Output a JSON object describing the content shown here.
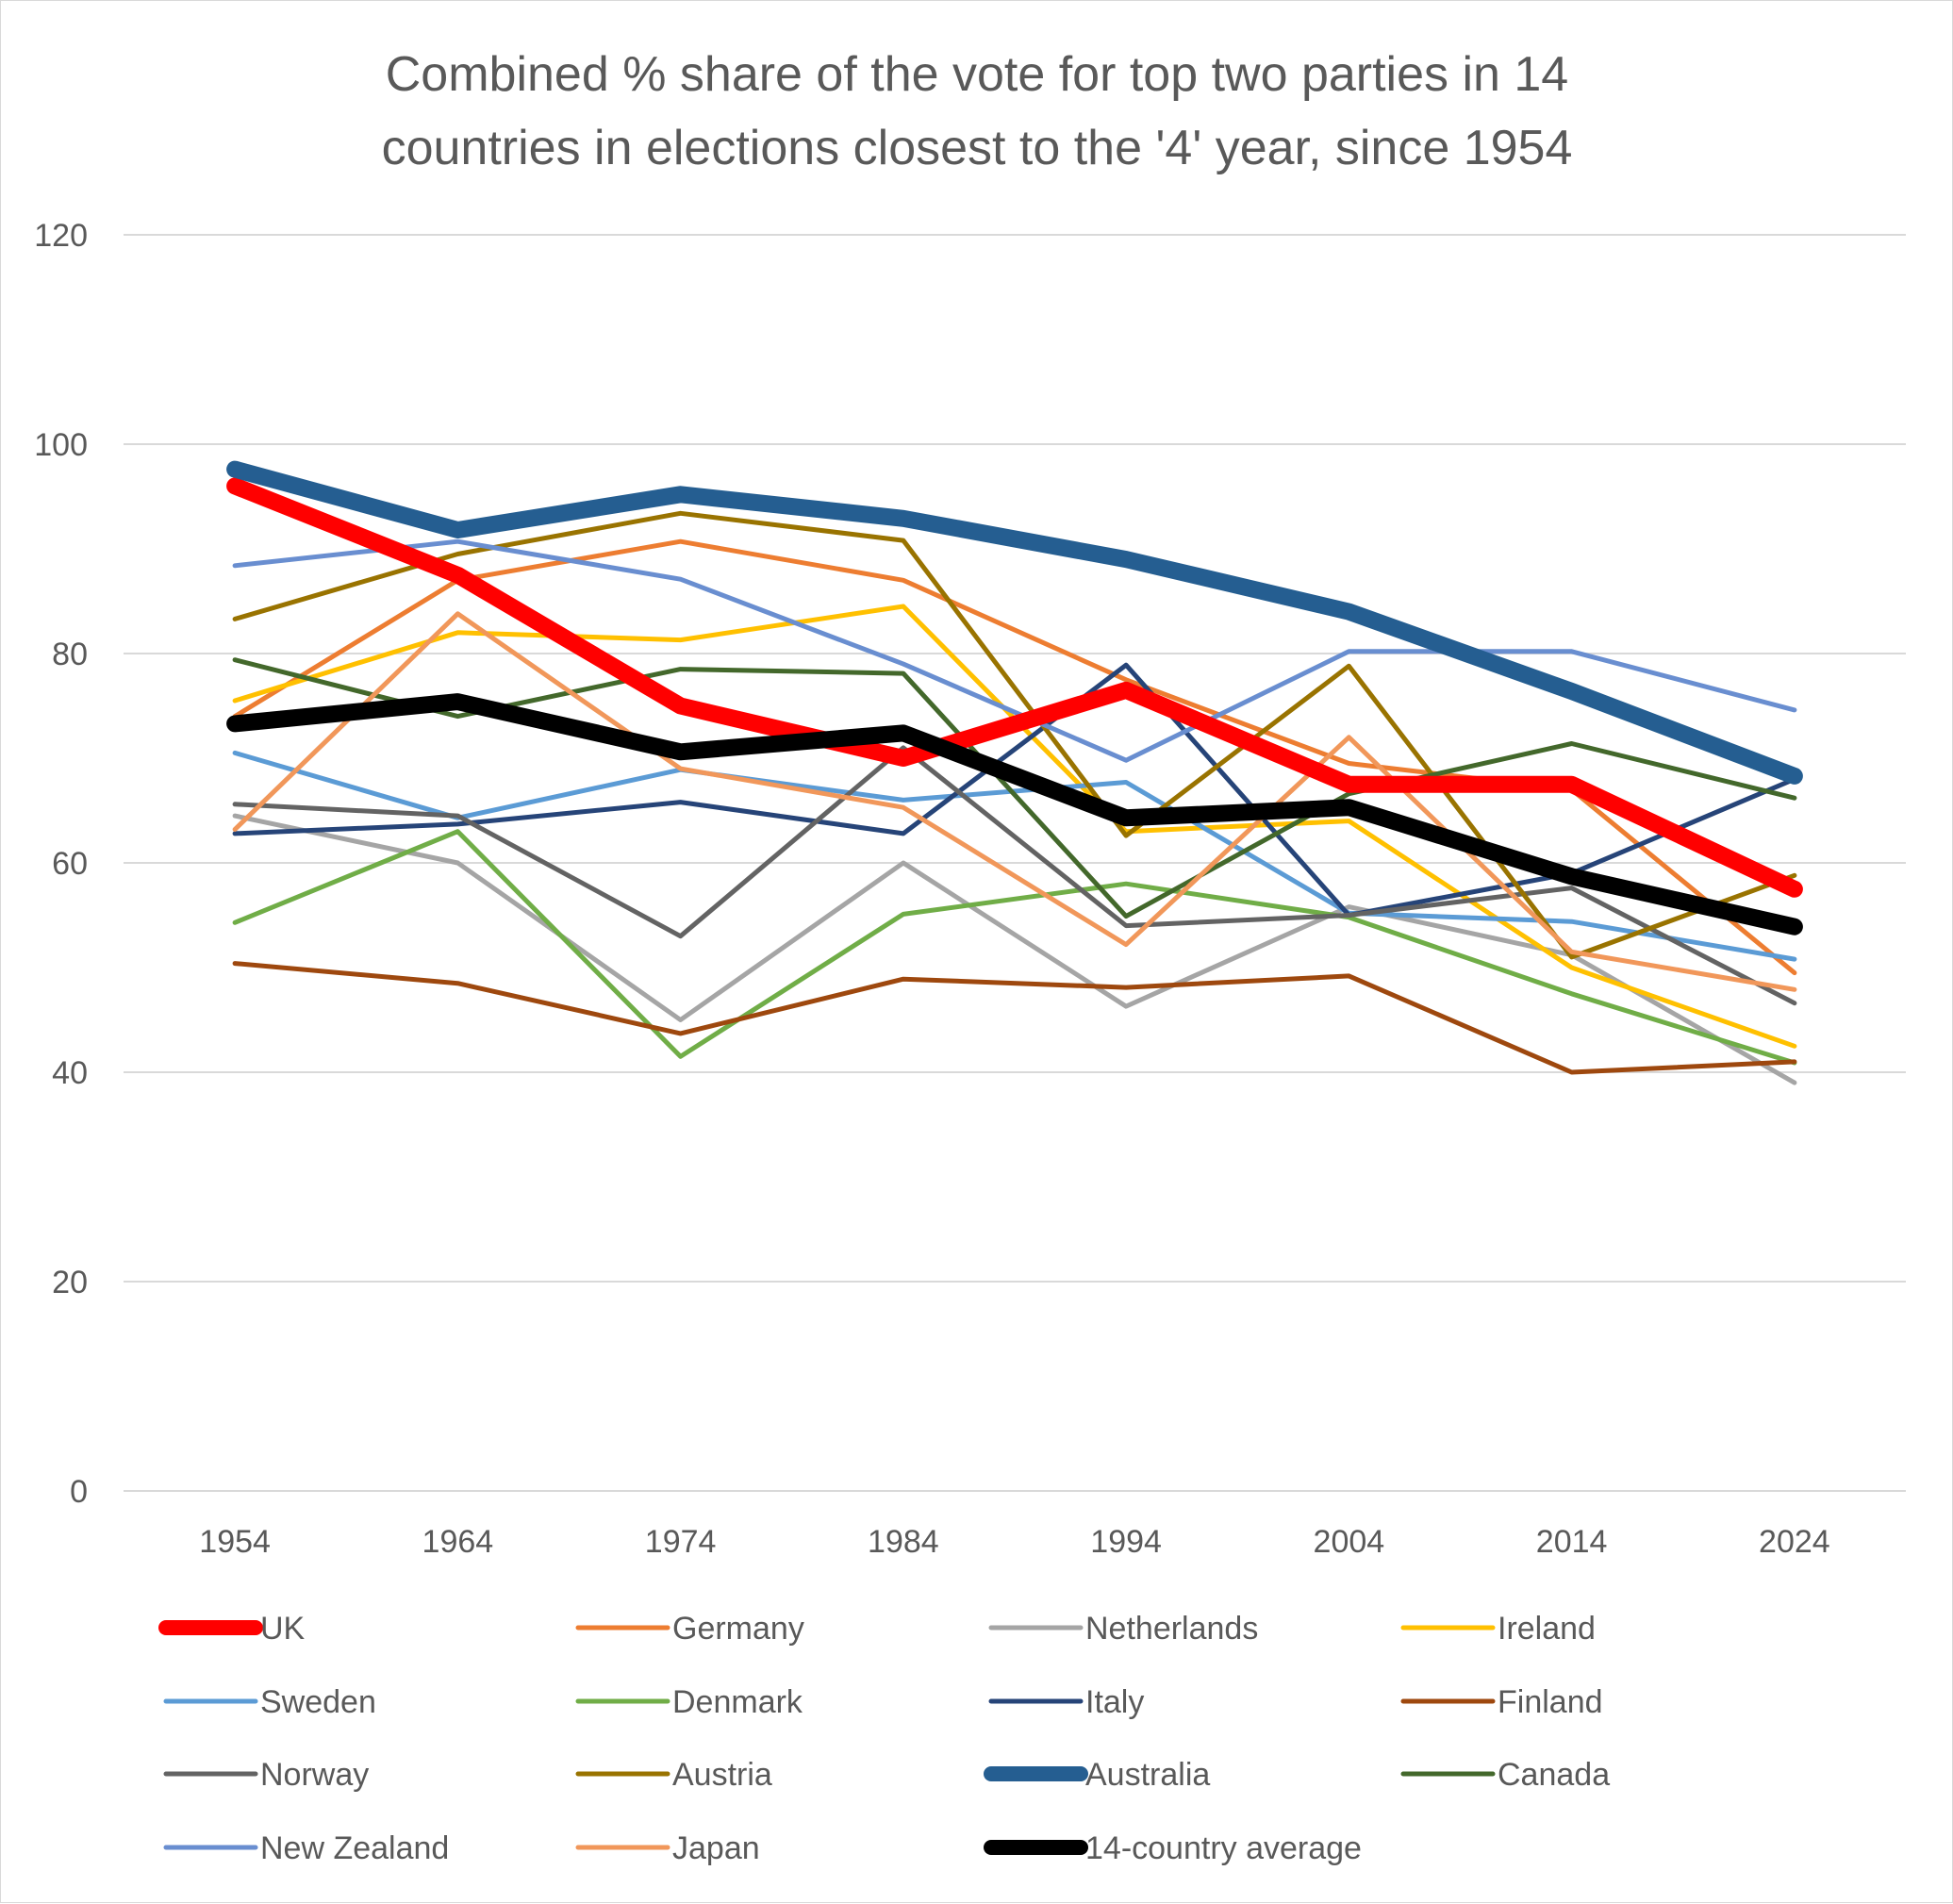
{
  "chart_data": {
    "type": "line",
    "title": "Combined % share of the vote for top two parties in 14 countries in elections closest to the '4' year, since 1954",
    "title_lines": [
      "Combined % share of the vote for top two parties in 14",
      "countries in elections closest to the '4' year, since 1954"
    ],
    "xlabel": "",
    "ylabel": "",
    "categories": [
      "1954",
      "1964",
      "1974",
      "1984",
      "1994",
      "2004",
      "2014",
      "2024"
    ],
    "ylim": [
      0,
      120
    ],
    "yticks": [
      "0",
      "20",
      "40",
      "60",
      "80",
      "100",
      "120"
    ],
    "grid": "horizontal",
    "legend_position": "bottom",
    "series": [
      {
        "name": "UK",
        "color": "#FF0000",
        "width": 18,
        "values": [
          96,
          87.5,
          75,
          70,
          76.5,
          67.5,
          67.5,
          57.5
        ]
      },
      {
        "name": "Germany",
        "color": "#ED7D31",
        "width": 5,
        "values": [
          74,
          87,
          90.7,
          87,
          77.5,
          69.5,
          67,
          49.5
        ]
      },
      {
        "name": "Netherlands",
        "color": "#A5A5A5",
        "width": 5,
        "values": [
          64.5,
          60,
          45,
          60,
          46.3,
          55.8,
          51.2,
          39
        ]
      },
      {
        "name": "Ireland",
        "color": "#FFC000",
        "width": 5,
        "values": [
          75.5,
          82,
          81.3,
          84.5,
          63,
          64,
          50,
          42.5
        ]
      },
      {
        "name": "Sweden",
        "color": "#5B9BD5",
        "width": 5,
        "values": [
          70.5,
          64.3,
          68.9,
          66,
          67.7,
          55.2,
          54.4,
          50.8
        ]
      },
      {
        "name": "Denmark",
        "color": "#70AD47",
        "width": 5,
        "values": [
          54.3,
          63,
          41.5,
          55.1,
          58,
          54.8,
          47.5,
          40.9
        ]
      },
      {
        "name": "Italy",
        "color": "#264478",
        "width": 5,
        "values": [
          62.8,
          63.7,
          65.8,
          62.8,
          78.9,
          55,
          59,
          68
        ]
      },
      {
        "name": "Finland",
        "color": "#9E480E",
        "width": 5,
        "values": [
          50.4,
          48.5,
          43.7,
          48.9,
          48.1,
          49.2,
          40,
          41
        ]
      },
      {
        "name": "Norway",
        "color": "#636363",
        "width": 5,
        "values": [
          65.6,
          64.5,
          53,
          71,
          54,
          55,
          57.6,
          46.6
        ]
      },
      {
        "name": "Austria",
        "color": "#997300",
        "width": 5,
        "values": [
          83.3,
          89.5,
          93.4,
          90.8,
          62.6,
          78.8,
          51,
          58.8
        ]
      },
      {
        "name": "Australia",
        "color": "#255E91",
        "width": 18,
        "values": [
          97.6,
          91.8,
          95.2,
          92.9,
          89,
          84,
          76.4,
          68.3
        ]
      },
      {
        "name": "Canada",
        "color": "#43682B",
        "width": 5,
        "values": [
          79.4,
          74,
          78.5,
          78.1,
          54.9,
          66.6,
          71.4,
          66.2
        ]
      },
      {
        "name": "New Zealand",
        "color": "#698ED0",
        "width": 5,
        "values": [
          88.4,
          90.7,
          87.1,
          79,
          69.8,
          80.2,
          80.2,
          74.6
        ]
      },
      {
        "name": "Japan",
        "color": "#F1975A",
        "width": 5,
        "values": [
          63.2,
          83.8,
          69,
          65.3,
          52.2,
          72,
          51.5,
          47.9
        ]
      },
      {
        "name": "14-country average",
        "color": "#000000",
        "width": 18,
        "values": [
          73.3,
          75.4,
          70.6,
          72.4,
          64.3,
          65.3,
          58.7,
          53.9
        ]
      }
    ]
  }
}
